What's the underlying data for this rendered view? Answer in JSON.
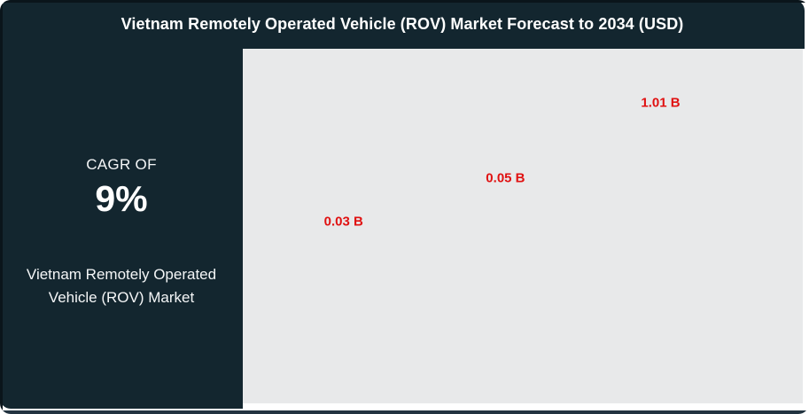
{
  "header": {
    "title": "Vietnam Remotely Operated Vehicle (ROV) Market Forecast to 2034 (USD)"
  },
  "sidebar": {
    "cagr_label": "CAGR OF",
    "cagr_value": "9%",
    "market_name": "Vietnam Remotely Operated Vehicle (ROV) Market"
  },
  "chart_data": {
    "type": "bar",
    "title": "Vietnam Remotely Operated Vehicle (ROV) Market Forecast to 2034 (USD)",
    "unit": "USD billions",
    "values": [
      0.03,
      0.05,
      1.01
    ],
    "points": [
      {
        "label": "0.03 B",
        "value": 0.03,
        "x_pct": 18.0,
        "y_pct": 48.8
      },
      {
        "label": "0.05 B",
        "value": 0.05,
        "x_pct": 46.9,
        "y_pct": 36.5
      },
      {
        "label": "1.01 B",
        "value": 1.01,
        "x_pct": 74.6,
        "y_pct": 15.3
      }
    ],
    "note": "Only red value labels are visible in the plot area; bars, axes, gridlines and category labels are not rendered",
    "legend": "none",
    "grid": "off",
    "label_color": "#e01111",
    "plot_bg": "#e8e9ea"
  },
  "colors": {
    "panel_dark": "#13262f",
    "frame_dark": "#0a151b",
    "bottom_border": "#223340",
    "chart_bg": "#e8e9ea",
    "accent_red": "#e01111",
    "title_text": "#ffffff"
  }
}
